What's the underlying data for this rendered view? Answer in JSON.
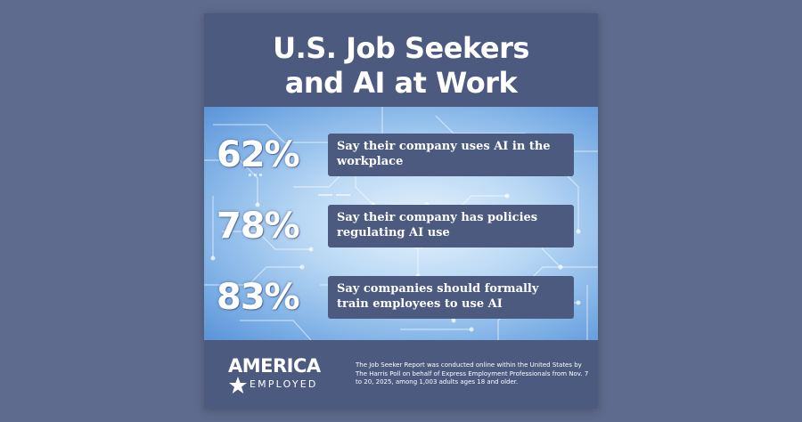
{
  "title": {
    "line1": "U.S. Job Seekers",
    "line2": "and AI at Work"
  },
  "stats": [
    {
      "percent": "62%",
      "text": "Say their company uses AI in the workplace"
    },
    {
      "percent": "78%",
      "text": "Say their company has policies regulating AI use"
    },
    {
      "percent": "83%",
      "text": "Say companies should formally train employees to use AI"
    }
  ],
  "logo": {
    "top": "AMERICA",
    "bottom": "EMPLOYED"
  },
  "footnote": "The Job Seeker Report was conducted online within the United States by The Harris Poll on behalf of Express Employment Professionals from Nov. 7 to 20, 2025, among 1,003 adults ages 18 and older.",
  "colors": {
    "page_background": "#5f6b8e",
    "card_navy": "#4d5a80",
    "text": "#ffffff",
    "circuit_light": "#e6f2fd",
    "circuit_blue": "#5a93d8"
  }
}
